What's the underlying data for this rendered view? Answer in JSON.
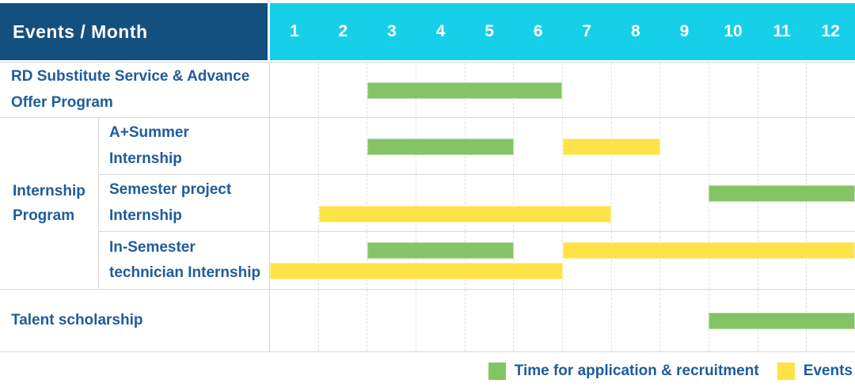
{
  "header": {
    "title": "Events / Month",
    "months": [
      "1",
      "2",
      "3",
      "4",
      "5",
      "6",
      "7",
      "8",
      "9",
      "10",
      "11",
      "12"
    ]
  },
  "group": {
    "internship": "Internship Program"
  },
  "rows": [
    {
      "label": "RD Substitute Service & Advance Offer Program",
      "bars": [
        {
          "color": "green",
          "start": 3,
          "end": 6,
          "line": "center"
        }
      ]
    },
    {
      "label": "A+Summer Internship",
      "bars": [
        {
          "color": "green",
          "start": 3,
          "end": 5,
          "line": "center"
        },
        {
          "color": "yellow",
          "start": 7,
          "end": 8,
          "line": "center"
        }
      ]
    },
    {
      "label": "Semester project Internship",
      "bars": [
        {
          "color": "green",
          "start": 10,
          "end": 12,
          "line": "top"
        },
        {
          "color": "yellow",
          "start": 2,
          "end": 7,
          "line": "bottom"
        }
      ]
    },
    {
      "label": "In-Semester technician Internship",
      "bars": [
        {
          "color": "green",
          "start": 3,
          "end": 5,
          "line": "top"
        },
        {
          "color": "yellow",
          "start": 7,
          "end": 12,
          "line": "top"
        },
        {
          "color": "yellow",
          "start": 1,
          "end": 6,
          "line": "bottom"
        }
      ]
    },
    {
      "label": "Talent scholarship",
      "bars": [
        {
          "color": "green",
          "start": 10,
          "end": 12,
          "line": "center"
        }
      ]
    }
  ],
  "legend": [
    {
      "swatch": "green",
      "label": "Time for application & recruitment"
    },
    {
      "swatch": "yellow",
      "label": "Events"
    }
  ],
  "colors": {
    "header_bg": "#14507F",
    "months_bg": "#16CFE8",
    "green": "#84C464",
    "yellow": "#FDE347",
    "label_text": "#1E5C9B",
    "grid_solid": "#D9D9D9",
    "grid_dashed": "#E2E2E2"
  },
  "chart_data": {
    "type": "bar",
    "subtype": "gantt-timeline",
    "title": "Events / Month",
    "xlabel": "Month",
    "x_ticks": [
      1,
      2,
      3,
      4,
      5,
      6,
      7,
      8,
      9,
      10,
      11,
      12
    ],
    "xlim": [
      1,
      12
    ],
    "grid": "vertical-dashed-per-month",
    "legend_position": "bottom-right",
    "legend": [
      "Time for application & recruitment",
      "Events"
    ],
    "series_colors": {
      "Time for application & recruitment": "#84C464",
      "Events": "#FDE347"
    },
    "tasks": [
      {
        "group": null,
        "name": "RD Substitute Service & Advance Offer Program",
        "bars": [
          {
            "category": "Time for application & recruitment",
            "start_month": 3,
            "end_month": 6
          }
        ]
      },
      {
        "group": "Internship Program",
        "name": "A+Summer Internship",
        "bars": [
          {
            "category": "Time for application & recruitment",
            "start_month": 3,
            "end_month": 5
          },
          {
            "category": "Events",
            "start_month": 7,
            "end_month": 8
          }
        ]
      },
      {
        "group": "Internship Program",
        "name": "Semester project Internship",
        "bars": [
          {
            "category": "Time for application & recruitment",
            "start_month": 10,
            "end_month": 12
          },
          {
            "category": "Events",
            "start_month": 2,
            "end_month": 7
          }
        ]
      },
      {
        "group": "Internship Program",
        "name": "In-Semester technician Internship",
        "bars": [
          {
            "category": "Time for application & recruitment",
            "start_month": 3,
            "end_month": 5
          },
          {
            "category": "Events",
            "start_month": 7,
            "end_month": 12
          },
          {
            "category": "Events",
            "start_month": 1,
            "end_month": 6
          }
        ]
      },
      {
        "group": null,
        "name": "Talent scholarship",
        "bars": [
          {
            "category": "Time for application & recruitment",
            "start_month": 10,
            "end_month": 12
          }
        ]
      }
    ]
  }
}
